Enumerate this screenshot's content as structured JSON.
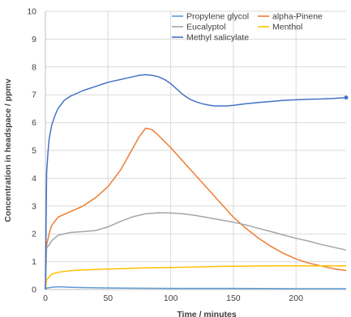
{
  "chart_data": {
    "type": "line",
    "xlabel": "Time / minutes",
    "ylabel": "Concentration in headspace / ppmv",
    "xlim": [
      0,
      240
    ],
    "ylim": [
      0,
      10
    ],
    "x_ticks": [
      0,
      50,
      100,
      150,
      200
    ],
    "y_ticks": [
      0,
      1,
      2,
      3,
      4,
      5,
      6,
      7,
      8,
      9,
      10
    ],
    "grid": true,
    "legend_position": "top-right",
    "series": [
      {
        "name": "Propylene glycol",
        "color": "#5b9bd5",
        "x": [
          0,
          1,
          5,
          10,
          20,
          40,
          60,
          100,
          150,
          200,
          240
        ],
        "y": [
          0,
          0.05,
          0.08,
          0.1,
          0.08,
          0.06,
          0.05,
          0.04,
          0.04,
          0.03,
          0.03
        ]
      },
      {
        "name": "alpha-Pinene",
        "color": "#ed7d31",
        "x": [
          0,
          1,
          3,
          5,
          10,
          20,
          30,
          40,
          50,
          60,
          70,
          75,
          80,
          85,
          90,
          100,
          110,
          120,
          130,
          140,
          150,
          160,
          170,
          180,
          190,
          200,
          210,
          220,
          230,
          240
        ],
        "y": [
          0,
          1.6,
          2.0,
          2.3,
          2.6,
          2.8,
          3.0,
          3.3,
          3.7,
          4.3,
          5.1,
          5.5,
          5.8,
          5.75,
          5.55,
          5.1,
          4.6,
          4.1,
          3.6,
          3.1,
          2.6,
          2.2,
          1.85,
          1.55,
          1.3,
          1.1,
          0.95,
          0.85,
          0.75,
          0.68
        ]
      },
      {
        "name": "Eucalyptol",
        "color": "#a5a5a5",
        "x": [
          0,
          1,
          3,
          5,
          10,
          20,
          30,
          40,
          50,
          60,
          70,
          80,
          90,
          100,
          110,
          120,
          130,
          140,
          150,
          160,
          170,
          180,
          190,
          200,
          210,
          220,
          230,
          240
        ],
        "y": [
          0,
          1.5,
          1.6,
          1.75,
          1.95,
          2.05,
          2.08,
          2.12,
          2.25,
          2.45,
          2.62,
          2.72,
          2.76,
          2.75,
          2.72,
          2.66,
          2.58,
          2.5,
          2.42,
          2.32,
          2.2,
          2.08,
          1.96,
          1.84,
          1.74,
          1.62,
          1.52,
          1.42
        ]
      },
      {
        "name": "Menthol",
        "color": "#ffc000",
        "x": [
          0,
          1,
          3,
          5,
          10,
          20,
          30,
          40,
          60,
          80,
          100,
          120,
          140,
          160,
          180,
          200,
          220,
          240
        ],
        "y": [
          0,
          0.35,
          0.45,
          0.55,
          0.62,
          0.68,
          0.7,
          0.72,
          0.75,
          0.78,
          0.79,
          0.81,
          0.83,
          0.84,
          0.85,
          0.85,
          0.85,
          0.85
        ]
      },
      {
        "name": "Methyl salicylate",
        "color": "#4472c4",
        "x": [
          0,
          1,
          2,
          3,
          5,
          8,
          10,
          15,
          20,
          25,
          30,
          40,
          50,
          60,
          70,
          75,
          80,
          85,
          90,
          95,
          100,
          105,
          110,
          115,
          120,
          125,
          130,
          135,
          140,
          145,
          150,
          160,
          170,
          180,
          190,
          200,
          210,
          220,
          230,
          240
        ],
        "y": [
          0,
          4.2,
          4.9,
          5.4,
          5.9,
          6.3,
          6.5,
          6.8,
          6.95,
          7.05,
          7.15,
          7.3,
          7.45,
          7.55,
          7.65,
          7.7,
          7.72,
          7.7,
          7.65,
          7.55,
          7.4,
          7.2,
          7.0,
          6.85,
          6.75,
          6.68,
          6.63,
          6.6,
          6.6,
          6.6,
          6.62,
          6.68,
          6.72,
          6.76,
          6.8,
          6.82,
          6.84,
          6.85,
          6.87,
          6.9
        ]
      }
    ]
  }
}
